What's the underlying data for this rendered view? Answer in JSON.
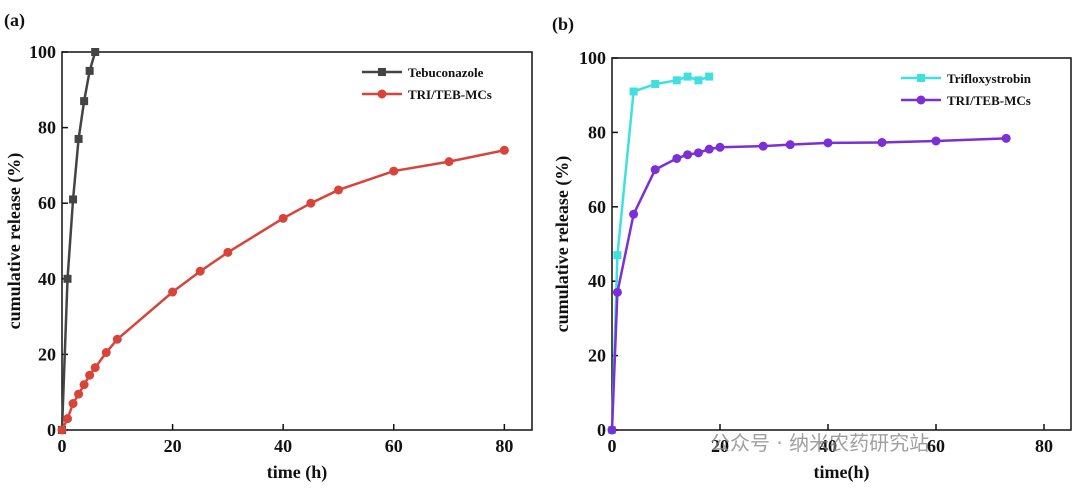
{
  "chart_data": [
    {
      "type": "line",
      "panel_label": "(a)",
      "xlabel": "time (h)",
      "ylabel": "cumulative release (%)",
      "xlim": [
        0,
        85
      ],
      "ylim": [
        0,
        100
      ],
      "xticks": [
        0,
        20,
        40,
        60,
        80
      ],
      "yticks": [
        0,
        20,
        40,
        60,
        80,
        100
      ],
      "legend": "upper right",
      "series": [
        {
          "name": "Tebuconazole",
          "color": "#444444",
          "marker": "square",
          "x": [
            0,
            1,
            2,
            3,
            4,
            5,
            6
          ],
          "values": [
            0,
            40,
            61,
            77,
            87,
            95,
            100
          ]
        },
        {
          "name": "TRI/TEB-MCs",
          "color": "#d9443a",
          "marker": "circle",
          "x": [
            0,
            1,
            2,
            3,
            4,
            5,
            6,
            8,
            10,
            20,
            25,
            30,
            40,
            45,
            50,
            60,
            70,
            80
          ],
          "values": [
            0,
            3,
            7,
            9.5,
            12,
            14.5,
            16.5,
            20.5,
            24,
            36.5,
            42,
            47,
            56,
            60,
            63.5,
            68.5,
            71,
            74
          ]
        }
      ]
    },
    {
      "type": "line",
      "panel_label": "(b)",
      "xlabel": "time(h)",
      "ylabel": "cumulative release (%)",
      "xlim": [
        0,
        85
      ],
      "ylim": [
        0,
        100
      ],
      "xticks": [
        0,
        20,
        40,
        60,
        80
      ],
      "yticks": [
        0,
        20,
        40,
        60,
        80,
        100
      ],
      "legend": "upper right",
      "watermark": "公众号 · 纳米农药研究站",
      "series": [
        {
          "name": "Trifloxystrobin",
          "color": "#3ee0e0",
          "marker": "square",
          "x": [
            0,
            1,
            4,
            8,
            12,
            14,
            16,
            18
          ],
          "values": [
            0,
            47,
            91,
            93,
            94,
            95,
            94,
            95
          ]
        },
        {
          "name": "TRI/TEB-MCs",
          "color": "#7b2fd6",
          "marker": "circle",
          "x": [
            0,
            1,
            4,
            8,
            12,
            14,
            16,
            18,
            20,
            28,
            33,
            40,
            50,
            60,
            73
          ],
          "values": [
            0,
            37,
            58,
            70,
            73,
            74,
            74.5,
            75.5,
            76,
            76.3,
            76.7,
            77.2,
            77.3,
            77.7,
            78.4
          ]
        }
      ]
    }
  ]
}
